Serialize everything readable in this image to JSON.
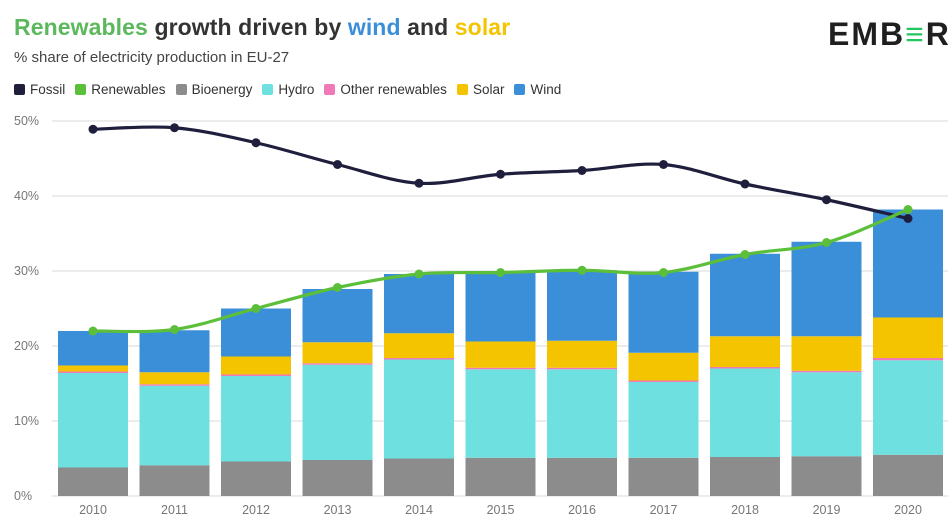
{
  "title": {
    "segments": [
      {
        "text": "Renewables",
        "color": "#5cb85c"
      },
      {
        "text": " growth driven by ",
        "color": "#333333"
      },
      {
        "text": "wind",
        "color": "#3b8fd9"
      },
      {
        "text": " and ",
        "color": "#333333"
      },
      {
        "text": "solar",
        "color": "#f5c400"
      }
    ]
  },
  "subtitle": "% share of electricity production in EU-27",
  "logo": {
    "part1": "EMB",
    "mark": "≡",
    "part2": "R"
  },
  "chart_data": {
    "type": "bar",
    "stacked": true,
    "categories": [
      "2010",
      "2011",
      "2012",
      "2013",
      "2014",
      "2015",
      "2016",
      "2017",
      "2018",
      "2019",
      "2020"
    ],
    "ylim": [
      0,
      50
    ],
    "yticks": [
      0,
      10,
      20,
      30,
      40,
      50
    ],
    "ytick_labels": [
      "0%",
      "10%",
      "20%",
      "30%",
      "40%",
      "50%"
    ],
    "grid": true,
    "legend_position": "top-left",
    "series": [
      {
        "name": "Bioenergy",
        "color": "#8c8c8c",
        "values": [
          3.8,
          4.1,
          4.6,
          4.8,
          5.0,
          5.1,
          5.1,
          5.1,
          5.2,
          5.3,
          5.5
        ]
      },
      {
        "name": "Hydro",
        "color": "#6ee0e0",
        "values": [
          12.6,
          10.6,
          11.4,
          12.7,
          13.2,
          11.8,
          11.8,
          10.1,
          11.8,
          11.2,
          12.6
        ]
      },
      {
        "name": "Other renewables",
        "color": "#f07ab8",
        "values": [
          0.2,
          0.2,
          0.2,
          0.2,
          0.2,
          0.2,
          0.2,
          0.2,
          0.2,
          0.2,
          0.3
        ]
      },
      {
        "name": "Solar",
        "color": "#f5c400",
        "values": [
          0.8,
          1.6,
          2.4,
          2.8,
          3.3,
          3.5,
          3.6,
          3.7,
          4.1,
          4.6,
          5.4
        ]
      },
      {
        "name": "Wind",
        "color": "#3b8fd9",
        "values": [
          4.6,
          5.6,
          6.4,
          7.1,
          7.9,
          9.3,
          9.4,
          10.8,
          11.0,
          12.6,
          14.4
        ]
      }
    ],
    "lines": [
      {
        "name": "Fossil",
        "color": "#1f1f3d",
        "values": [
          48.9,
          49.1,
          47.1,
          44.2,
          41.7,
          42.9,
          43.4,
          44.2,
          41.6,
          39.5,
          37.0
        ]
      },
      {
        "name": "Renewables",
        "color": "#5cbf3a",
        "values": [
          22.0,
          22.2,
          25.0,
          27.8,
          29.6,
          29.8,
          30.1,
          29.8,
          32.2,
          33.8,
          38.2
        ]
      }
    ]
  },
  "legend": [
    {
      "label": "Fossil",
      "color": "#1f1f3d"
    },
    {
      "label": "Renewables",
      "color": "#5cbf3a"
    },
    {
      "label": "Bioenergy",
      "color": "#8c8c8c"
    },
    {
      "label": "Hydro",
      "color": "#6ee0e0"
    },
    {
      "label": "Other renewables",
      "color": "#f07ab8"
    },
    {
      "label": "Solar",
      "color": "#f5c400"
    },
    {
      "label": "Wind",
      "color": "#3b8fd9"
    }
  ]
}
